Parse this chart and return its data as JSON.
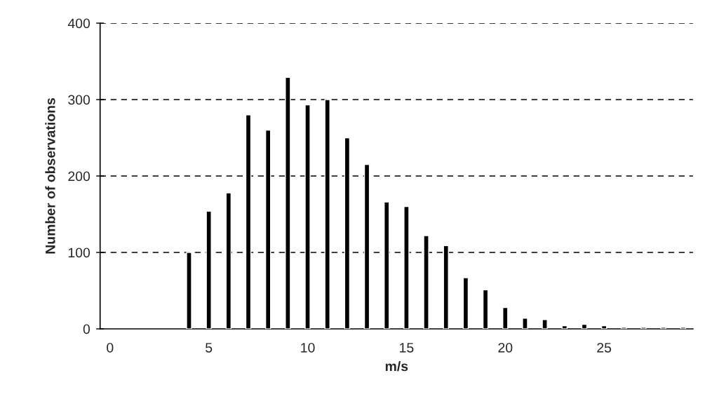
{
  "chart_data": {
    "type": "bar",
    "xlabel": "m/s",
    "ylabel": "Number of observations",
    "x": [
      4,
      5,
      6,
      7,
      8,
      9,
      10,
      11,
      12,
      13,
      14,
      15,
      16,
      17,
      18,
      19,
      20,
      21,
      22,
      23,
      24,
      25,
      26,
      27,
      28,
      29
    ],
    "values": [
      100,
      154,
      178,
      280,
      260,
      329,
      293,
      300,
      250,
      215,
      166,
      160,
      122,
      109,
      67,
      51,
      28,
      14,
      12,
      4,
      6,
      4,
      2,
      2,
      2,
      2
    ],
    "color": "#000000",
    "xlim": [
      -0.5,
      29.5
    ],
    "xticks": [
      0,
      5,
      10,
      15,
      20,
      25
    ],
    "ylim": [
      0,
      400
    ],
    "yticks": [
      0,
      100,
      200,
      300,
      400
    ],
    "grid": "y",
    "line_style": "dashed"
  }
}
